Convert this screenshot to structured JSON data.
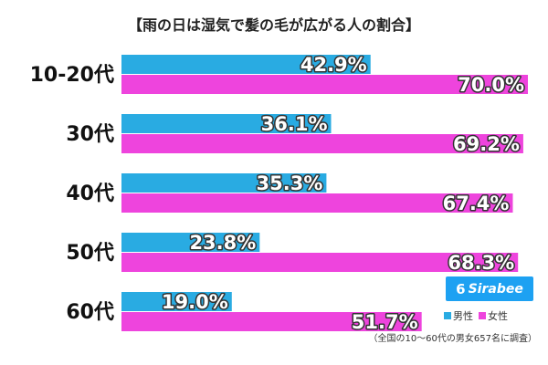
{
  "chart_data": {
    "type": "bar",
    "orientation": "horizontal",
    "title": "【雨の日は湿気で髪の毛が広がる人の割合】",
    "categories": [
      "10-20代",
      "30代",
      "40代",
      "50代",
      "60代"
    ],
    "series": [
      {
        "name": "男性",
        "values": [
          42.9,
          36.1,
          35.3,
          23.8,
          19.0
        ],
        "labels": [
          "42.9%",
          "36.1%",
          "35.3%",
          "23.8%",
          "19.0%"
        ],
        "color": "#29abe2"
      },
      {
        "name": "女性",
        "values": [
          70.0,
          69.2,
          67.4,
          68.3,
          51.7
        ],
        "labels": [
          "70.0%",
          "69.2%",
          "67.4%",
          "68.3%",
          "51.7%"
        ],
        "color": "#ee44dd"
      }
    ],
    "xlim": [
      0,
      70
    ],
    "grid": false,
    "legend": "bottom-right",
    "note": "（全国の10～60代の男女657名に調査）"
  },
  "branding": {
    "logo_text": "Sirabee",
    "logo_mark": "6",
    "logo_color": "#1da1f2"
  }
}
